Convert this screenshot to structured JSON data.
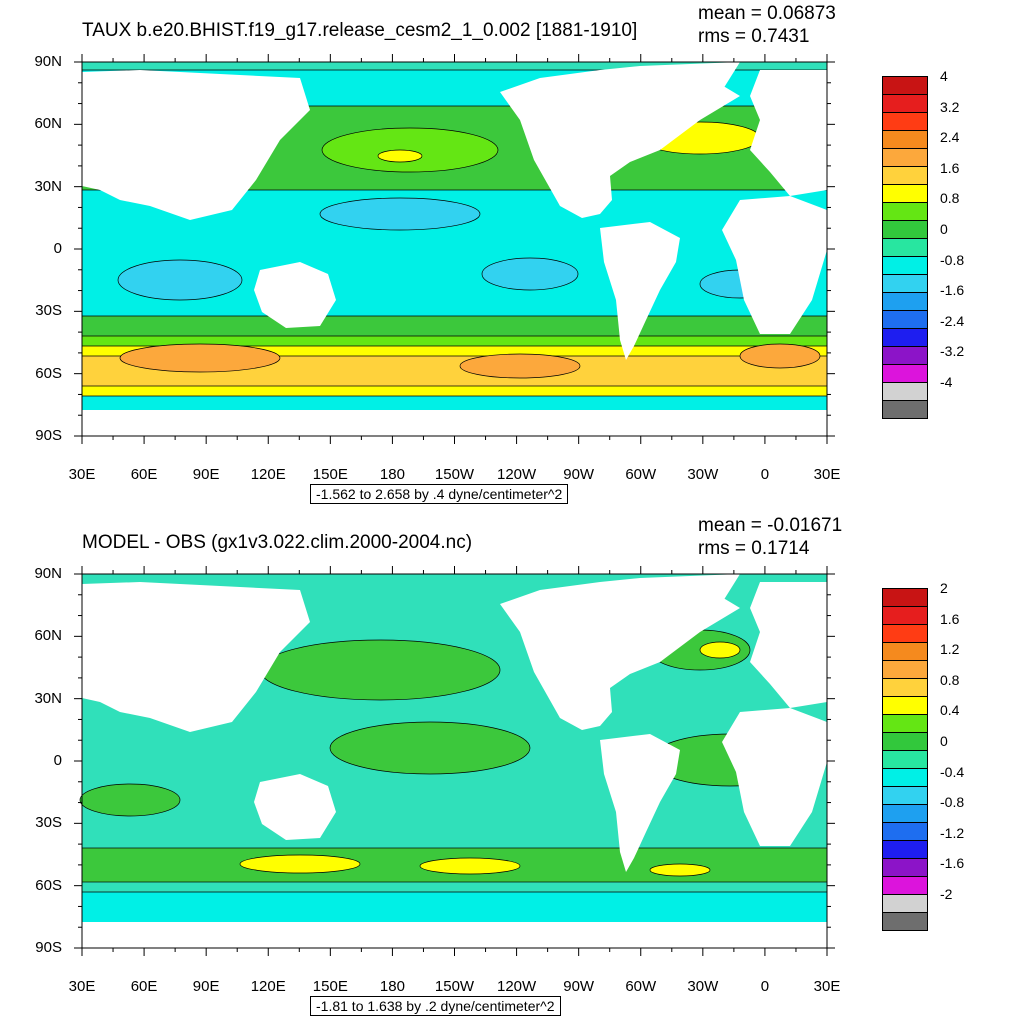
{
  "panels": [
    {
      "title": "TAUX b.e20.BHIST.f19_g17.release_cesm2_1_0.002 [1881-1910]",
      "mean": "mean = 0.06873",
      "rms": "rms = 0.7431",
      "range": "-1.562 to 2.658 by .4 dyne/centimeter^2",
      "colorbar_labels": [
        "4",
        "3.2",
        "2.4",
        "1.6",
        "0.8",
        "0",
        "-0.8",
        "-1.6",
        "-2.4",
        "-3.2",
        "-4"
      ]
    },
    {
      "title": "MODEL - OBS (gx1v3.022.clim.2000-2004.nc)",
      "mean": "mean = -0.01671",
      "rms": "rms = 0.1714",
      "range": "-1.81 to 1.638 by .2 dyne/centimeter^2",
      "colorbar_labels": [
        "2",
        "1.6",
        "1.2",
        "0.8",
        "0.4",
        "0",
        "-0.4",
        "-0.8",
        "-1.2",
        "-1.6",
        "-2"
      ]
    }
  ],
  "lat_labels": [
    "90N",
    "60N",
    "30N",
    "0",
    "30S",
    "60S",
    "90S"
  ],
  "lon_labels": [
    "30E",
    "60E",
    "90E",
    "120E",
    "150E",
    "180",
    "150W",
    "120W",
    "90W",
    "60W",
    "30W",
    "0",
    "30E"
  ],
  "colorbar_colors": [
    "#c81414",
    "#e61e1e",
    "#ff3c14",
    "#f58a1e",
    "#fca83c",
    "#ffd23c",
    "#ffff00",
    "#64e614",
    "#32c83c",
    "#28e6a0",
    "#00f0e6",
    "#32d2f0",
    "#1ea0f0",
    "#1e6ef0",
    "#1e1ef0",
    "#8c14c8",
    "#dc14dc",
    "#d2d2d2",
    "#6e6e6e"
  ],
  "map_colors": {
    "ocean_base": "#30e0ba",
    "cyan": "#00f0e6",
    "light_blue": "#32d2f0",
    "green": "#3cc83c",
    "bright_green": "#64e614",
    "yellow": "#ffff00",
    "light_orange": "#ffd23c",
    "orange": "#fca83c",
    "land": "#ffffff"
  }
}
